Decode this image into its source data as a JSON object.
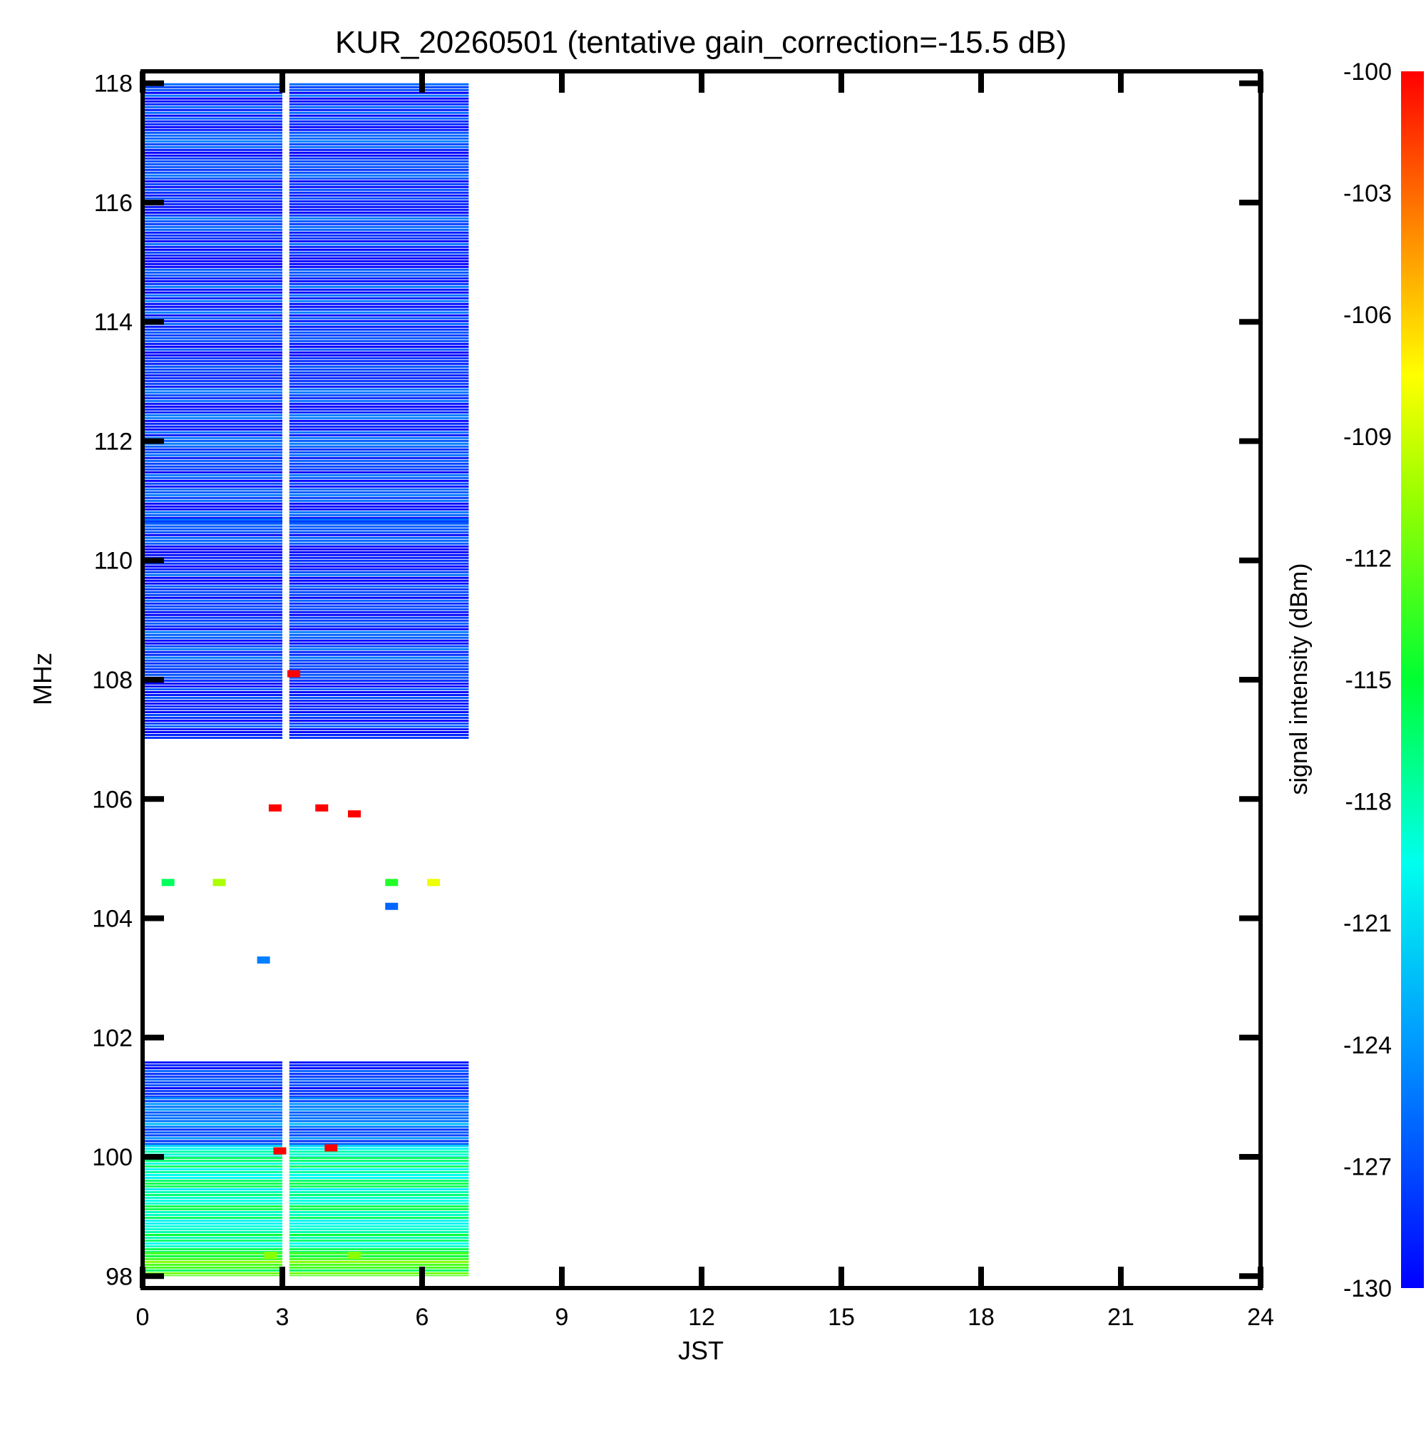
{
  "chart_data": {
    "type": "heatmap",
    "title": "KUR_20260501 (tentative gain_correction=-15.5 dB)",
    "xlabel": "JST",
    "ylabel": "MHz",
    "colorbar_label": "signal intensity (dBm)",
    "xlim": [
      0,
      24
    ],
    "ylim": [
      97.8,
      118.2
    ],
    "x_ticks": [
      0,
      3,
      6,
      9,
      12,
      15,
      18,
      21,
      24
    ],
    "y_ticks": [
      98,
      100,
      102,
      104,
      106,
      108,
      110,
      112,
      114,
      116,
      118
    ],
    "colorbar_range": [
      -130,
      -100
    ],
    "colorbar_ticks": [
      -100,
      -103,
      -106,
      -109,
      -112,
      -115,
      -118,
      -121,
      -124,
      -127,
      -130
    ],
    "colormap": "rainbow (blue to red)",
    "data_time_range": [
      0,
      7.0
    ],
    "gap_time_range": [
      3.0,
      3.15
    ],
    "grid": false,
    "bands": [
      {
        "freq": [
          98.0,
          98.4
        ],
        "level": -114,
        "time": [
          0,
          7.0
        ]
      },
      {
        "freq": [
          98.4,
          100.0
        ],
        "level": -118,
        "time": [
          0,
          7.0
        ]
      },
      {
        "freq": [
          100.0,
          100.2
        ],
        "level": -120,
        "time": [
          0,
          7.0
        ]
      },
      {
        "freq": [
          100.2,
          101.0
        ],
        "level": -125,
        "time": [
          0,
          7.0
        ]
      },
      {
        "freq": [
          101.0,
          101.6
        ],
        "level": -128,
        "time": [
          0,
          7.0
        ]
      },
      {
        "freq": [
          107.0,
          108.0
        ],
        "level": -129,
        "time": [
          0,
          7.0
        ]
      },
      {
        "freq": [
          108.0,
          118.0
        ],
        "level": -128,
        "time": [
          0,
          7.0
        ]
      },
      {
        "freq": [
          110.6,
          110.7
        ],
        "level": -124,
        "time": [
          0,
          7.0
        ]
      }
    ],
    "spots": [
      {
        "t": 2.9,
        "f": 100.1,
        "level": -100
      },
      {
        "t": 4.0,
        "f": 100.15,
        "level": -100
      },
      {
        "t": 2.8,
        "f": 105.85,
        "level": -100
      },
      {
        "t": 3.8,
        "f": 105.85,
        "level": -100
      },
      {
        "t": 4.5,
        "f": 105.75,
        "level": -100
      },
      {
        "t": 0.5,
        "f": 104.6,
        "level": -116
      },
      {
        "t": 1.6,
        "f": 104.6,
        "level": -110
      },
      {
        "t": 5.3,
        "f": 104.6,
        "level": -114
      },
      {
        "t": 6.2,
        "f": 104.6,
        "level": -108
      },
      {
        "t": 5.3,
        "f": 104.2,
        "level": -126
      },
      {
        "t": 2.55,
        "f": 103.3,
        "level": -125
      },
      {
        "t": 3.2,
        "f": 108.1,
        "level": -100
      },
      {
        "t": 2.7,
        "f": 98.35,
        "level": -111
      },
      {
        "t": 4.5,
        "f": 98.35,
        "level": -111
      }
    ]
  }
}
